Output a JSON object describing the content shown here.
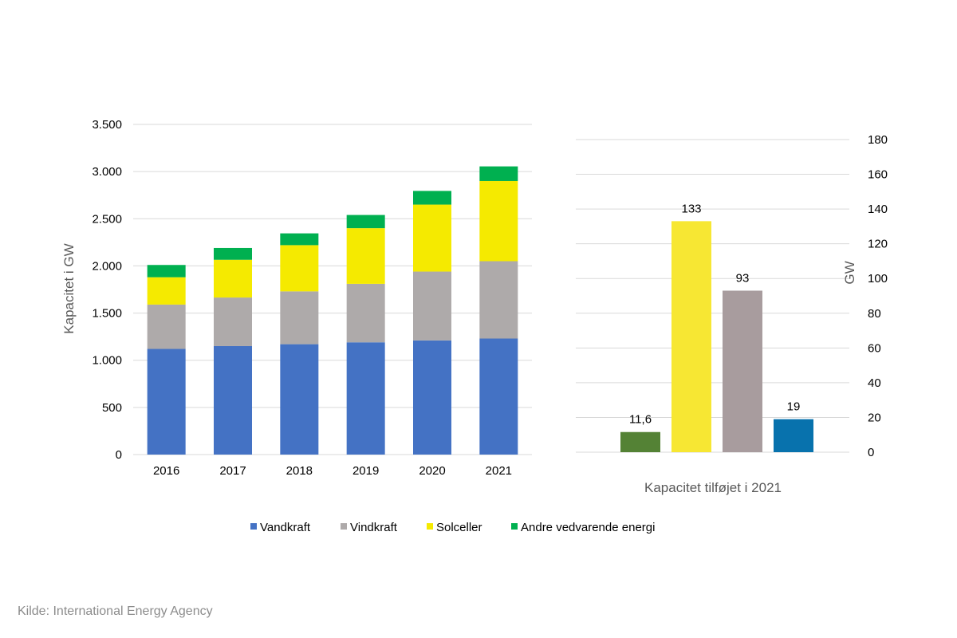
{
  "source": "Kilde: International Energy Agency",
  "chart_data": [
    {
      "type": "bar",
      "stacked": true,
      "categories": [
        "2016",
        "2017",
        "2018",
        "2019",
        "2020",
        "2021"
      ],
      "ylabel": "Kapacitet i GW",
      "ylim": [
        0,
        3500
      ],
      "yticks": [
        {
          "value": 0,
          "label": "0"
        },
        {
          "value": 500,
          "label": "500"
        },
        {
          "value": 1000,
          "label": "1.000"
        },
        {
          "value": 1500,
          "label": "1.500"
        },
        {
          "value": 2000,
          "label": "2.000"
        },
        {
          "value": 2500,
          "label": "2.500"
        },
        {
          "value": 3000,
          "label": "3.000"
        },
        {
          "value": 3500,
          "label": "3.500"
        }
      ],
      "grid": true,
      "legend_position": "bottom",
      "series": [
        {
          "name": "Vandkraft",
          "color": "#4472c4",
          "values": [
            1120,
            1150,
            1170,
            1190,
            1210,
            1230
          ]
        },
        {
          "name": "Vindkraft",
          "color": "#aeaaaa",
          "values": [
            470,
            515,
            560,
            620,
            730,
            820
          ]
        },
        {
          "name": "Solceller",
          "color": "#f5ea00",
          "values": [
            290,
            400,
            490,
            590,
            710,
            850
          ]
        },
        {
          "name": "Andre vedvarende energi",
          "color": "#00b050",
          "values": [
            130,
            125,
            125,
            140,
            145,
            155
          ]
        }
      ]
    },
    {
      "type": "bar",
      "xlabel": "Kapacitet tilføjet i 2021",
      "ylabel": "GW",
      "ylim": [
        0,
        180
      ],
      "yticks": [
        0,
        20,
        40,
        60,
        80,
        100,
        120,
        140,
        160,
        180
      ],
      "grid": true,
      "y_axis_side": "right",
      "bars": [
        {
          "value": 11.6,
          "label": "11,6",
          "color": "#548235"
        },
        {
          "value": 133,
          "label": "133",
          "color": "#f7e733"
        },
        {
          "value": 93,
          "label": "93",
          "color": "#a89c9e"
        },
        {
          "value": 19,
          "label": "19",
          "color": "#0872ad"
        }
      ]
    }
  ]
}
